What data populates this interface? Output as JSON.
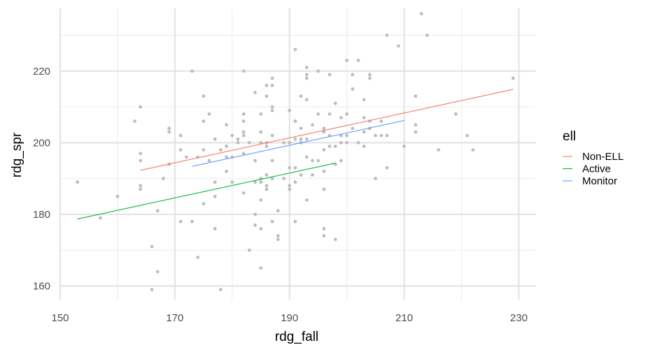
{
  "chart_data": {
    "type": "scatter",
    "title": "",
    "xlabel": "rdg_fall",
    "ylabel": "rdg_spr",
    "xlim": [
      150,
      233
    ],
    "ylim": [
      156,
      237.5
    ],
    "x_ticks": [
      150,
      170,
      190,
      210,
      230
    ],
    "y_ticks": [
      160,
      180,
      200,
      220
    ],
    "x_tick_labels": [
      "150",
      "170",
      "190",
      "210",
      "230"
    ],
    "y_tick_labels": [
      "160",
      "180",
      "200",
      "220"
    ],
    "grid": true,
    "legend": {
      "title": "ell",
      "position": "right"
    },
    "point_color": "#bdbdbd",
    "points": [
      [
        153,
        189
      ],
      [
        157,
        179
      ],
      [
        160,
        185
      ],
      [
        163,
        206
      ],
      [
        164,
        210
      ],
      [
        164,
        197
      ],
      [
        164,
        195
      ],
      [
        164,
        188
      ],
      [
        164,
        187
      ],
      [
        166,
        171
      ],
      [
        166,
        159
      ],
      [
        167,
        181
      ],
      [
        167,
        164
      ],
      [
        168,
        190
      ],
      [
        169,
        204
      ],
      [
        169,
        203
      ],
      [
        169,
        194
      ],
      [
        171,
        202
      ],
      [
        171,
        198
      ],
      [
        171,
        178
      ],
      [
        172,
        196
      ],
      [
        173,
        220
      ],
      [
        173,
        178
      ],
      [
        174,
        196
      ],
      [
        174,
        168
      ],
      [
        175,
        213
      ],
      [
        175,
        206
      ],
      [
        175,
        198
      ],
      [
        175,
        183
      ],
      [
        176,
        208
      ],
      [
        176,
        195
      ],
      [
        177,
        201
      ],
      [
        177,
        189
      ],
      [
        177,
        185
      ],
      [
        177,
        176
      ],
      [
        178,
        198
      ],
      [
        178,
        159
      ],
      [
        179,
        205
      ],
      [
        179,
        199
      ],
      [
        179,
        196
      ],
      [
        179,
        192
      ],
      [
        180,
        202
      ],
      [
        180,
        196
      ],
      [
        180,
        189
      ],
      [
        181,
        201
      ],
      [
        181,
        200
      ],
      [
        182,
        220
      ],
      [
        182,
        208
      ],
      [
        182,
        206
      ],
      [
        182,
        203
      ],
      [
        182,
        202
      ],
      [
        182,
        197
      ],
      [
        182,
        186
      ],
      [
        183,
        170
      ],
      [
        183,
        200
      ],
      [
        184,
        214
      ],
      [
        184,
        195
      ],
      [
        184,
        189
      ],
      [
        184,
        180
      ],
      [
        184,
        177
      ],
      [
        185,
        208
      ],
      [
        185,
        203
      ],
      [
        185,
        200
      ],
      [
        185,
        190
      ],
      [
        185,
        189
      ],
      [
        185,
        184
      ],
      [
        185,
        176
      ],
      [
        185,
        165
      ],
      [
        186,
        216
      ],
      [
        186,
        213
      ],
      [
        186,
        200
      ],
      [
        186,
        199
      ],
      [
        186,
        191
      ],
      [
        186,
        188
      ],
      [
        186,
        187
      ],
      [
        187,
        218
      ],
      [
        187,
        216
      ],
      [
        187,
        210
      ],
      [
        187,
        209
      ],
      [
        187,
        202
      ],
      [
        187,
        195
      ],
      [
        187,
        190
      ],
      [
        187,
        178
      ],
      [
        188,
        181
      ],
      [
        188,
        174
      ],
      [
        188,
        173
      ],
      [
        189,
        200
      ],
      [
        189,
        190
      ],
      [
        190,
        209
      ],
      [
        190,
        200
      ],
      [
        190,
        193
      ],
      [
        190,
        188
      ],
      [
        190,
        187
      ],
      [
        191,
        226
      ],
      [
        191,
        206
      ],
      [
        191,
        201
      ],
      [
        191,
        193
      ],
      [
        191,
        189
      ],
      [
        191,
        178
      ],
      [
        192,
        213
      ],
      [
        192,
        204
      ],
      [
        192,
        201
      ],
      [
        192,
        200
      ],
      [
        192,
        191
      ],
      [
        193,
        221
      ],
      [
        193,
        219
      ],
      [
        193,
        218
      ],
      [
        193,
        212
      ],
      [
        193,
        201
      ],
      [
        193,
        196
      ],
      [
        193,
        184
      ],
      [
        194,
        205
      ],
      [
        194,
        195
      ],
      [
        194,
        191
      ],
      [
        195,
        220
      ],
      [
        195,
        208
      ],
      [
        195,
        195
      ],
      [
        196,
        204
      ],
      [
        196,
        203
      ],
      [
        196,
        198
      ],
      [
        196,
        192
      ],
      [
        196,
        187
      ],
      [
        196,
        176
      ],
      [
        196,
        174
      ],
      [
        197,
        219
      ],
      [
        197,
        208
      ],
      [
        197,
        202
      ],
      [
        197,
        199
      ],
      [
        198,
        211
      ],
      [
        198,
        199
      ],
      [
        198,
        194
      ],
      [
        198,
        173
      ],
      [
        199,
        207
      ],
      [
        199,
        202
      ],
      [
        199,
        200
      ],
      [
        199,
        195
      ],
      [
        200,
        223
      ],
      [
        200,
        208
      ],
      [
        200,
        202
      ],
      [
        200,
        200
      ],
      [
        201,
        219
      ],
      [
        201,
        215
      ],
      [
        201,
        204
      ],
      [
        202,
        223
      ],
      [
        202,
        200
      ],
      [
        203,
        212
      ],
      [
        203,
        207
      ],
      [
        203,
        203
      ],
      [
        203,
        199
      ],
      [
        204,
        219
      ],
      [
        204,
        218
      ],
      [
        204,
        206
      ],
      [
        204,
        204
      ],
      [
        205,
        202
      ],
      [
        205,
        190
      ],
      [
        206,
        206
      ],
      [
        206,
        202
      ],
      [
        207,
        230
      ],
      [
        207,
        202
      ],
      [
        207,
        193
      ],
      [
        209,
        227
      ],
      [
        210,
        199
      ],
      [
        212,
        213
      ],
      [
        212,
        205
      ],
      [
        212,
        203
      ],
      [
        213,
        236
      ],
      [
        214,
        230
      ],
      [
        216,
        198
      ],
      [
        219,
        208
      ],
      [
        221,
        202
      ],
      [
        222,
        198
      ],
      [
        229,
        218
      ]
    ],
    "series": [
      {
        "name": "Non-ELL",
        "color": "#F8766D",
        "x": [
          164,
          229
        ],
        "y": [
          192.3,
          214.9
        ]
      },
      {
        "name": "Active",
        "color": "#00BA38",
        "x": [
          153,
          198
        ],
        "y": [
          178.7,
          194.3
        ]
      },
      {
        "name": "Monitor",
        "color": "#619CFF",
        "x": [
          173,
          210
        ],
        "y": [
          193.4,
          206.2
        ]
      }
    ]
  }
}
